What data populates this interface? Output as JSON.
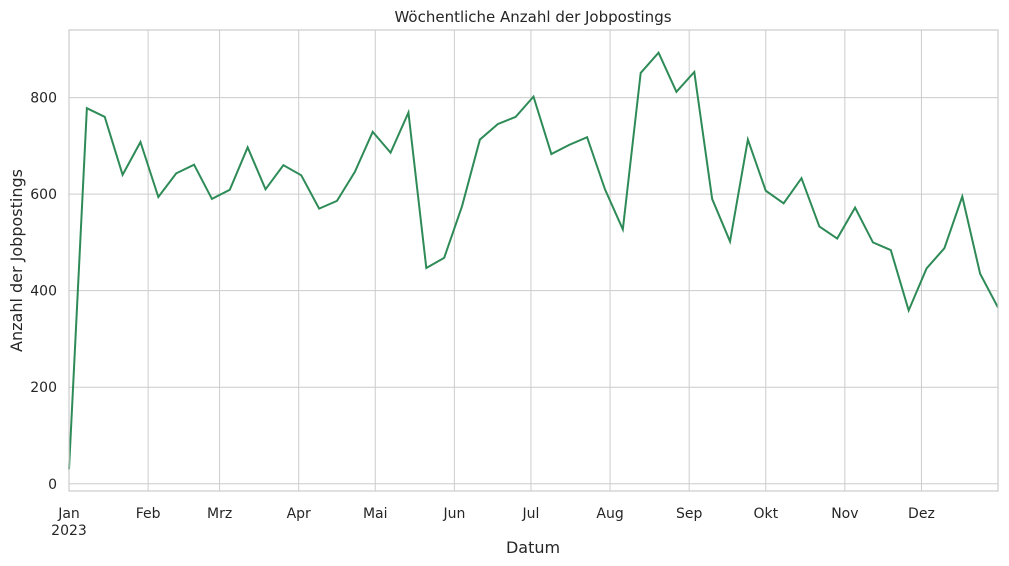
{
  "chart_data": {
    "type": "line",
    "title": "Wöchentliche Anzahl der Jobpostings",
    "xlabel": "Datum",
    "ylabel": "Anzahl der Jobpostings",
    "ylim": [
      -15,
      940
    ],
    "xlim": [
      "2023-01-01",
      "2023-12-31"
    ],
    "grid": true,
    "line_color": "#2e8b57",
    "yticks": [
      0,
      200,
      400,
      600,
      800
    ],
    "xticks": [
      {
        "date": "2023-01-01",
        "label": "Jan",
        "sublabel": "2023"
      },
      {
        "date": "2023-02-01",
        "label": "Feb"
      },
      {
        "date": "2023-03-01",
        "label": "Mrz"
      },
      {
        "date": "2023-04-01",
        "label": "Apr"
      },
      {
        "date": "2023-05-01",
        "label": "Mai"
      },
      {
        "date": "2023-06-01",
        "label": "Jun"
      },
      {
        "date": "2023-07-01",
        "label": "Jul"
      },
      {
        "date": "2023-08-01",
        "label": "Aug"
      },
      {
        "date": "2023-09-01",
        "label": "Sep"
      },
      {
        "date": "2023-10-01",
        "label": "Okt"
      },
      {
        "date": "2023-11-01",
        "label": "Nov"
      },
      {
        "date": "2023-12-01",
        "label": "Dez"
      }
    ],
    "series": [
      {
        "x": [
          "2023-01-01",
          "2023-01-08",
          "2023-01-15",
          "2023-01-22",
          "2023-01-29",
          "2023-02-05",
          "2023-02-12",
          "2023-02-19",
          "2023-02-26",
          "2023-03-05",
          "2023-03-12",
          "2023-03-19",
          "2023-03-26",
          "2023-04-02",
          "2023-04-09",
          "2023-04-16",
          "2023-04-23",
          "2023-04-30",
          "2023-05-07",
          "2023-05-14",
          "2023-05-21",
          "2023-05-28",
          "2023-06-04",
          "2023-06-11",
          "2023-06-18",
          "2023-06-25",
          "2023-07-02",
          "2023-07-09",
          "2023-07-16",
          "2023-07-23",
          "2023-07-30",
          "2023-08-06",
          "2023-08-13",
          "2023-08-20",
          "2023-08-27",
          "2023-09-03",
          "2023-09-10",
          "2023-09-17",
          "2023-09-24",
          "2023-10-01",
          "2023-10-08",
          "2023-10-15",
          "2023-10-22",
          "2023-10-29",
          "2023-11-05",
          "2023-11-12",
          "2023-11-19",
          "2023-11-26",
          "2023-12-03",
          "2023-12-10",
          "2023-12-17",
          "2023-12-24",
          "2023-12-31"
        ],
        "values": [
          30,
          778,
          760,
          640,
          708,
          594,
          643,
          661,
          590,
          609,
          697,
          610,
          660,
          639,
          570,
          586,
          646,
          729,
          686,
          769,
          447,
          468,
          575,
          713,
          745,
          760,
          802,
          683,
          702,
          718,
          610,
          527,
          851,
          893,
          812,
          853,
          590,
          502,
          713,
          607,
          581,
          633,
          533,
          508,
          572,
          500,
          484,
          359,
          446,
          488,
          595,
          435,
          365
        ]
      }
    ]
  }
}
